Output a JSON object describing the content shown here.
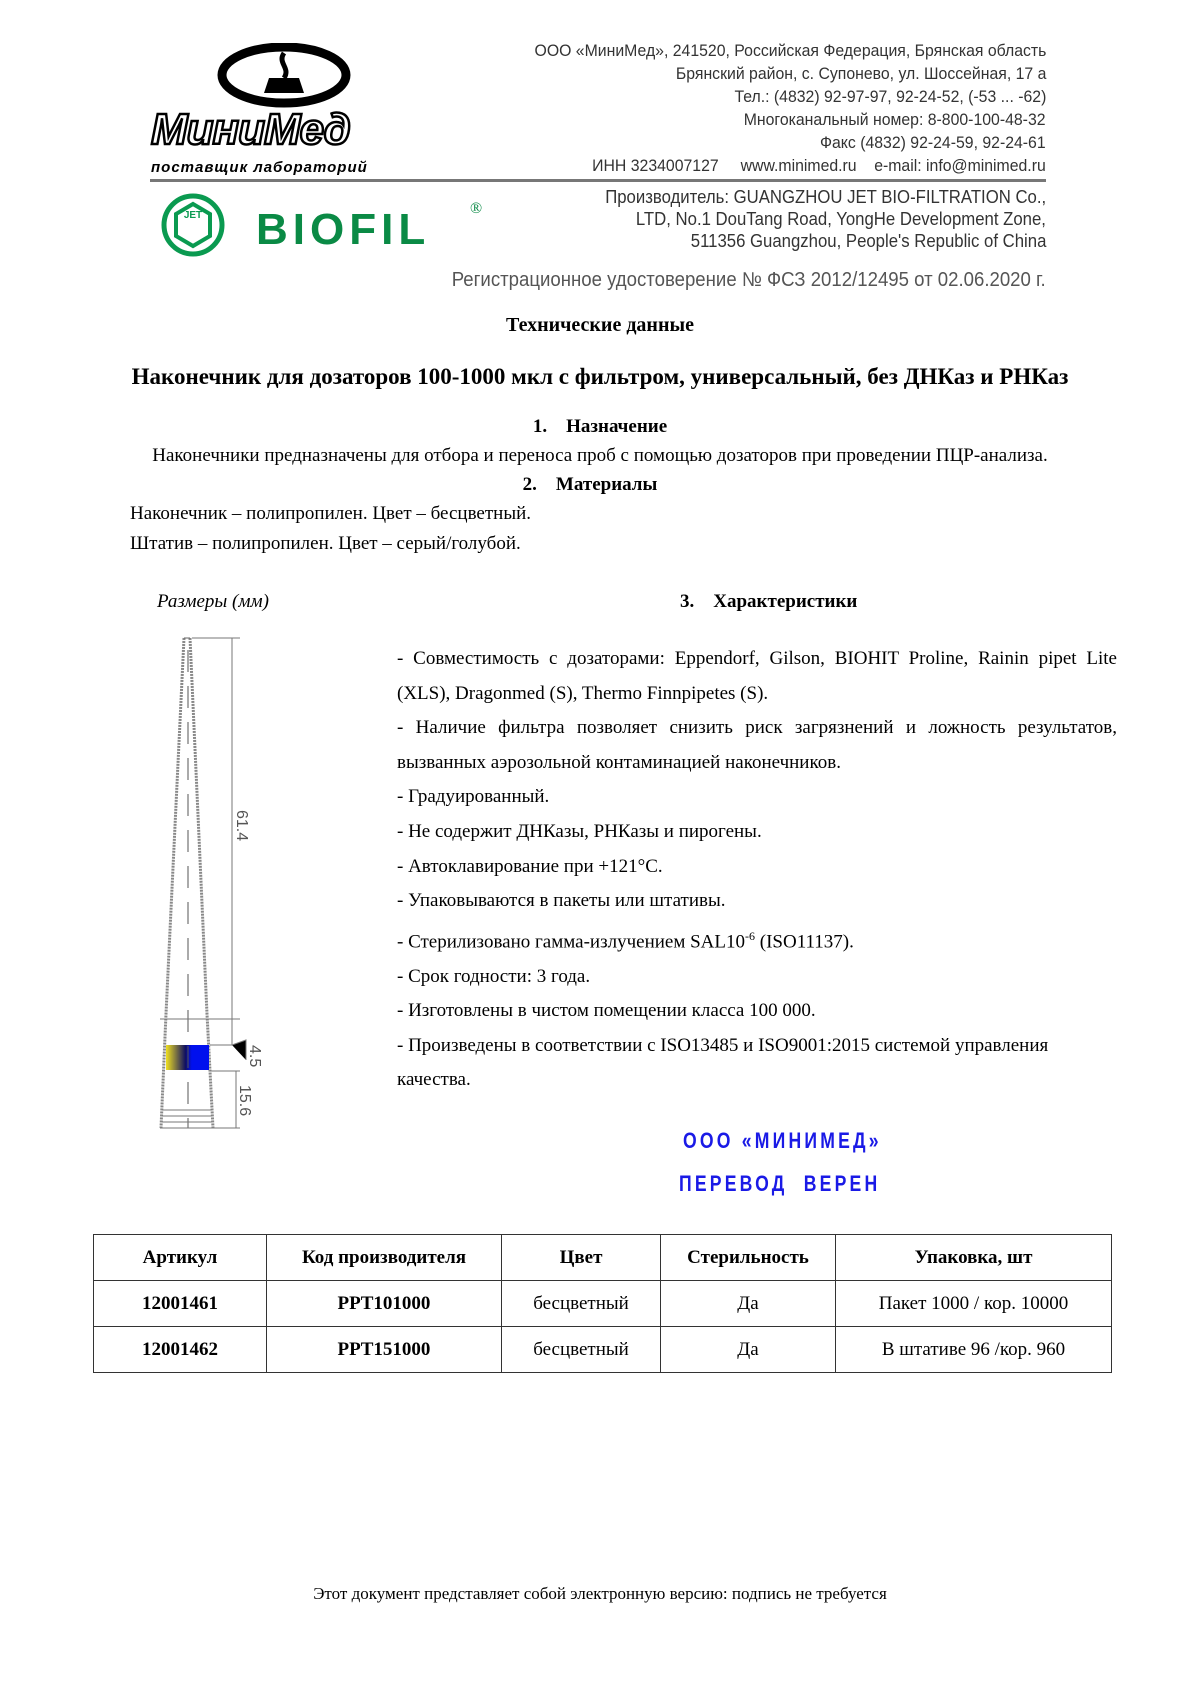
{
  "header": {
    "logo_text": "МиниМед",
    "logo_tagline": "поставщик лабораторий",
    "address_lines": [
      "ООО «МиниМед», 241520, Российская Федерация, Брянская область",
      "Брянский район, с. Супонево,  ул. Шоссейная, 17 а",
      "Тел.: (4832) 92-97-97, 92-24-52, (-53 ... -62)",
      "Многоканальный номер: 8-800-100-48-32",
      "Факс (4832) 92-24-59, 92-24-61"
    ],
    "inn": "ИНН 3234007127",
    "website": "www.minimed.ru",
    "email": "e-mail: info@minimed.ru",
    "biofil_logo": "BIOFIL",
    "jet_logo": "JET",
    "manufacturer_lines": [
      "Производитель: GUANGZHOU JET BIO-FILTRATION Co.,",
      "LTD, No.1 DouTang Road, YongHe Development Zone,",
      "511356 Guangzhou, People's Republic of China"
    ],
    "registration": "Регистрационное удостоверение № ФСЗ 2012/12495 от 02.06.2020 г."
  },
  "doc_title": "Технические данные",
  "product_title": "Наконечник для дозаторов 100-1000 мкл с фильтром, универсальный, без ДНКаз и РНКаз",
  "section1": {
    "heading": "1.    Назначение",
    "text": "Наконечники предназначены для отбора и переноса проб с помощью дозаторов при проведении ПЦР-анализа."
  },
  "section2": {
    "heading": "2.    Материалы",
    "lines": [
      "Наконечник – полипропилен. Цвет – бесцветный.",
      "Штатив – полипропилен. Цвет – серый/голубой."
    ]
  },
  "dimensions": {
    "label": "Размеры (мм)",
    "d1": "61.4",
    "d2": "4.5",
    "d3": "15.6",
    "filter_colors": [
      "#f0e020",
      "#0010ee"
    ]
  },
  "section3": {
    "heading": "3.    Характеристики",
    "items": [
      "- Совместимость с дозаторами: Eppendorf, Gilson, BIOHIT Proline, Rainin pipet Lite (XLS), Dragonmed (S), Thermo Finnpipetes (S).",
      "- Наличие фильтра позволяет снизить риск загрязнений и ложность результатов, вызванных аэрозольной контаминацией наконечников.",
      "- Градуированный.",
      "- Не содержит ДНКазы, РНКазы и пирогены.",
      "- Автоклавирование при +121°С.",
      "- Упаковываются в пакеты или штативы."
    ],
    "sterile_prefix": "- Стерилизовано гамма-излучением SAL10",
    "sterile_sup": "-6",
    "sterile_suffix": " (ISO11137).",
    "items2": [
      "- Срок годности: 3 года.",
      "- Изготовлены в чистом помещении класса 100 000.",
      "- Произведены в соответствии с ISO13485 и ISO9001:2015 системой управления качества."
    ]
  },
  "stamp": {
    "line1": "ООО «МИНИМЕД»",
    "line2": "ПЕРЕВОД  ВЕРЕН",
    "color": "#1a1ae6"
  },
  "table": {
    "headers": [
      "Артикул",
      "Код производителя",
      "Цвет",
      "Стерильность",
      "Упаковка, шт"
    ],
    "rows": [
      [
        "12001461",
        "PPT101000",
        "бесцветный",
        "Да",
        "Пакет 1000 / кор. 10000"
      ],
      [
        "12001462",
        "PPT151000",
        "бесцветный",
        "Да",
        "В штативе 96 /кор. 960"
      ]
    ]
  },
  "footer": "Этот документ представляет собой электронную версию: подпись не требуется"
}
